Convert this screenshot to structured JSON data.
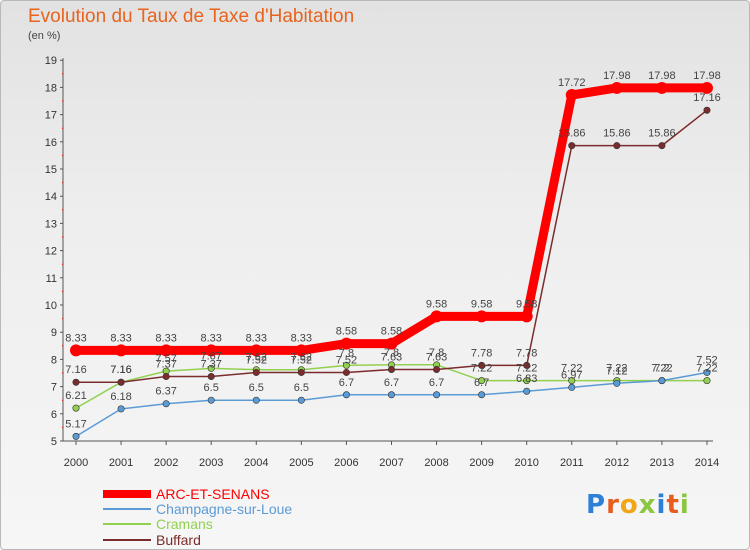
{
  "header": {
    "title": "Evolution du Taux de Taxe d'Habitation",
    "unit": "(en %)"
  },
  "brand": {
    "letters": [
      "P",
      "r",
      "o",
      "x",
      "i",
      "t",
      "i"
    ],
    "colors": [
      "#2e7fd8",
      "#e85d1f",
      "#f2a516",
      "#8cc63f",
      "#2e7fd8",
      "#e85d1f",
      "#8cc63f"
    ]
  },
  "chart_data": {
    "type": "line",
    "title": "Evolution du Taux de Taxe d'Habitation",
    "ylabel": "(en %)",
    "xlabel": "",
    "x": [
      "2000",
      "2001",
      "2002",
      "2003",
      "2004",
      "2005",
      "2006",
      "2007",
      "2008",
      "2009",
      "2010",
      "2011",
      "2012",
      "2013",
      "2014"
    ],
    "ylim": [
      5,
      19
    ],
    "yticks": [
      5,
      6,
      7,
      8,
      9,
      10,
      11,
      12,
      13,
      14,
      15,
      16,
      17,
      18,
      19
    ],
    "grid": false,
    "legend_position": "bottom-left",
    "series": [
      {
        "name": "ARC-ET-SENANS",
        "color": "#ff0000",
        "values": [
          8.33,
          8.33,
          8.33,
          8.33,
          8.33,
          8.33,
          8.58,
          8.58,
          9.58,
          9.58,
          9.58,
          17.72,
          17.98,
          17.98,
          17.98
        ],
        "labels": [
          "8.33",
          "8.33",
          "8.33",
          "8.33",
          "8.33",
          "8.33",
          "8.58",
          "8.58",
          "9.58",
          "9.58",
          "9.58",
          "17.72",
          "17.98",
          "17.98",
          "17.98"
        ]
      },
      {
        "name": "Champagne-sur-Loue",
        "color": "#5b9bd5",
        "values": [
          5.17,
          6.18,
          6.37,
          6.5,
          6.5,
          6.5,
          6.7,
          6.7,
          6.7,
          6.7,
          6.83,
          6.97,
          7.12,
          7.22,
          7.52
        ],
        "labels": [
          "5.17",
          "6.18",
          "6.37",
          "6.5",
          "6.5",
          "6.5",
          "6.7",
          "6.7",
          "6.7",
          "6.7",
          "6.83",
          "6.97",
          "7.12",
          "7.22",
          "7.52"
        ]
      },
      {
        "name": "Cramans",
        "color": "#92d050",
        "values": [
          6.21,
          7.16,
          7.57,
          7.67,
          7.62,
          7.62,
          7.78,
          7.8,
          7.8,
          7.22,
          7.22,
          7.22,
          7.22,
          7.22,
          7.22
        ],
        "labels": [
          "6.21",
          "7.16",
          "7.57",
          "7.67",
          "7.62",
          "7.62",
          "7.8",
          "7.8",
          "7.8",
          "7.22",
          "7.22",
          "7.22",
          "7.22",
          "7.2",
          "7.22"
        ]
      },
      {
        "name": "Buffard",
        "color": "#7b2c2c",
        "values": [
          7.16,
          7.16,
          7.37,
          7.37,
          7.52,
          7.52,
          7.52,
          7.63,
          7.63,
          7.78,
          7.78,
          15.86,
          15.86,
          15.86,
          17.16
        ],
        "labels": [
          "7.16",
          "7.16",
          "7.37",
          "7.37",
          "7.52",
          "7.52",
          "7.52",
          "7.63",
          "7.63",
          "7.78",
          "7.78",
          "15.86",
          "15.86",
          "15.86",
          "17.16"
        ]
      }
    ]
  }
}
